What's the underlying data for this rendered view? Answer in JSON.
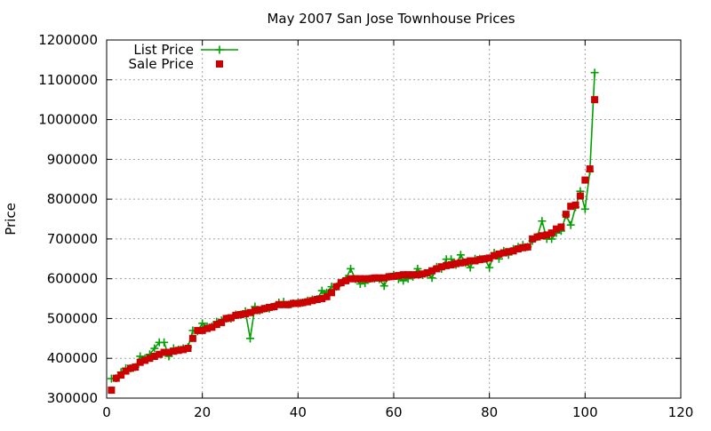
{
  "chart_data": {
    "type": "line",
    "title": "May 2007 San Jose Townhouse Prices",
    "xlabel": "",
    "ylabel": "Price",
    "xlim": [
      0,
      120
    ],
    "ylim": [
      300000,
      1200000
    ],
    "x_ticks": [
      0,
      20,
      40,
      60,
      80,
      100,
      120
    ],
    "y_ticks": [
      300000,
      400000,
      500000,
      600000,
      700000,
      800000,
      900000,
      1000000,
      1100000,
      1200000
    ],
    "grid": true,
    "legend_position": "top-left",
    "series": [
      {
        "name": "List Price",
        "style": "line+cross",
        "color": "#00a000",
        "x": [
          1,
          2,
          3,
          4,
          5,
          6,
          7,
          8,
          9,
          10,
          11,
          12,
          13,
          14,
          15,
          16,
          17,
          18,
          19,
          20,
          21,
          22,
          23,
          24,
          25,
          26,
          27,
          28,
          29,
          30,
          31,
          32,
          33,
          34,
          35,
          36,
          37,
          38,
          39,
          40,
          41,
          42,
          43,
          44,
          45,
          46,
          47,
          48,
          49,
          50,
          51,
          52,
          53,
          54,
          55,
          56,
          57,
          58,
          59,
          60,
          61,
          62,
          63,
          64,
          65,
          66,
          67,
          68,
          69,
          70,
          71,
          72,
          73,
          74,
          75,
          76,
          77,
          78,
          79,
          80,
          81,
          82,
          83,
          84,
          85,
          86,
          87,
          88,
          89,
          90,
          91,
          92,
          93,
          94,
          95,
          96,
          97,
          98,
          99,
          100,
          101,
          102
        ],
        "values": [
          349000,
          350000,
          365000,
          375000,
          375000,
          378000,
          405000,
          400000,
          410000,
          425000,
          440000,
          440000,
          405000,
          425000,
          422000,
          425000,
          428000,
          470000,
          468000,
          488000,
          480000,
          480000,
          492000,
          495000,
          500000,
          500000,
          510000,
          510000,
          518000,
          450000,
          530000,
          520000,
          525000,
          525000,
          530000,
          540000,
          542000,
          535000,
          538000,
          540000,
          540000,
          545000,
          548000,
          549000,
          570000,
          565000,
          580000,
          580000,
          590000,
          600000,
          625000,
          599000,
          587000,
          589000,
          600000,
          600000,
          599000,
          582000,
          605000,
          610000,
          599000,
          595000,
          600000,
          605000,
          625000,
          610000,
          612000,
          602000,
          630000,
          625000,
          649000,
          649000,
          635000,
          660000,
          640000,
          628000,
          650000,
          650000,
          650000,
          628000,
          665000,
          650000,
          670000,
          660000,
          675000,
          680000,
          685000,
          680000,
          695000,
          705000,
          745000,
          700000,
          700000,
          715000,
          720000,
          760000,
          735000,
          780000,
          820000,
          775000,
          870000,
          1118000
        ]
      },
      {
        "name": "Sale Price",
        "style": "square",
        "color": "#cc0000",
        "x": [
          1,
          2,
          3,
          4,
          5,
          6,
          7,
          8,
          9,
          10,
          11,
          12,
          13,
          14,
          15,
          16,
          17,
          18,
          19,
          20,
          21,
          22,
          23,
          24,
          25,
          26,
          27,
          28,
          29,
          30,
          31,
          32,
          33,
          34,
          35,
          36,
          37,
          38,
          39,
          40,
          41,
          42,
          43,
          44,
          45,
          46,
          47,
          48,
          49,
          50,
          51,
          52,
          53,
          54,
          55,
          56,
          57,
          58,
          59,
          60,
          61,
          62,
          63,
          64,
          65,
          66,
          67,
          68,
          69,
          70,
          71,
          72,
          73,
          74,
          75,
          76,
          77,
          78,
          79,
          80,
          81,
          82,
          83,
          84,
          85,
          86,
          87,
          88,
          89,
          90,
          91,
          92,
          93,
          94,
          95,
          96,
          97,
          98,
          99,
          100,
          101,
          102
        ],
        "values": [
          320000,
          350000,
          358000,
          368000,
          375000,
          378000,
          390000,
          395000,
          400000,
          405000,
          410000,
          415000,
          415000,
          418000,
          420000,
          422000,
          425000,
          450000,
          470000,
          470000,
          475000,
          478000,
          485000,
          490000,
          500000,
          502000,
          508000,
          510000,
          512000,
          515000,
          520000,
          522000,
          525000,
          528000,
          530000,
          535000,
          535000,
          535000,
          538000,
          538000,
          540000,
          542000,
          545000,
          548000,
          550000,
          555000,
          565000,
          580000,
          590000,
          595000,
          600000,
          600000,
          600000,
          600000,
          600000,
          602000,
          602000,
          602000,
          605000,
          606000,
          608000,
          610000,
          610000,
          610000,
          610000,
          612000,
          615000,
          620000,
          625000,
          630000,
          633000,
          635000,
          638000,
          640000,
          642000,
          645000,
          645000,
          648000,
          650000,
          652000,
          658000,
          662000,
          665000,
          668000,
          670000,
          675000,
          678000,
          680000,
          700000,
          705000,
          708000,
          710000,
          715000,
          725000,
          730000,
          762000,
          782000,
          785000,
          808000,
          848000,
          876000,
          1050000
        ]
      }
    ]
  }
}
